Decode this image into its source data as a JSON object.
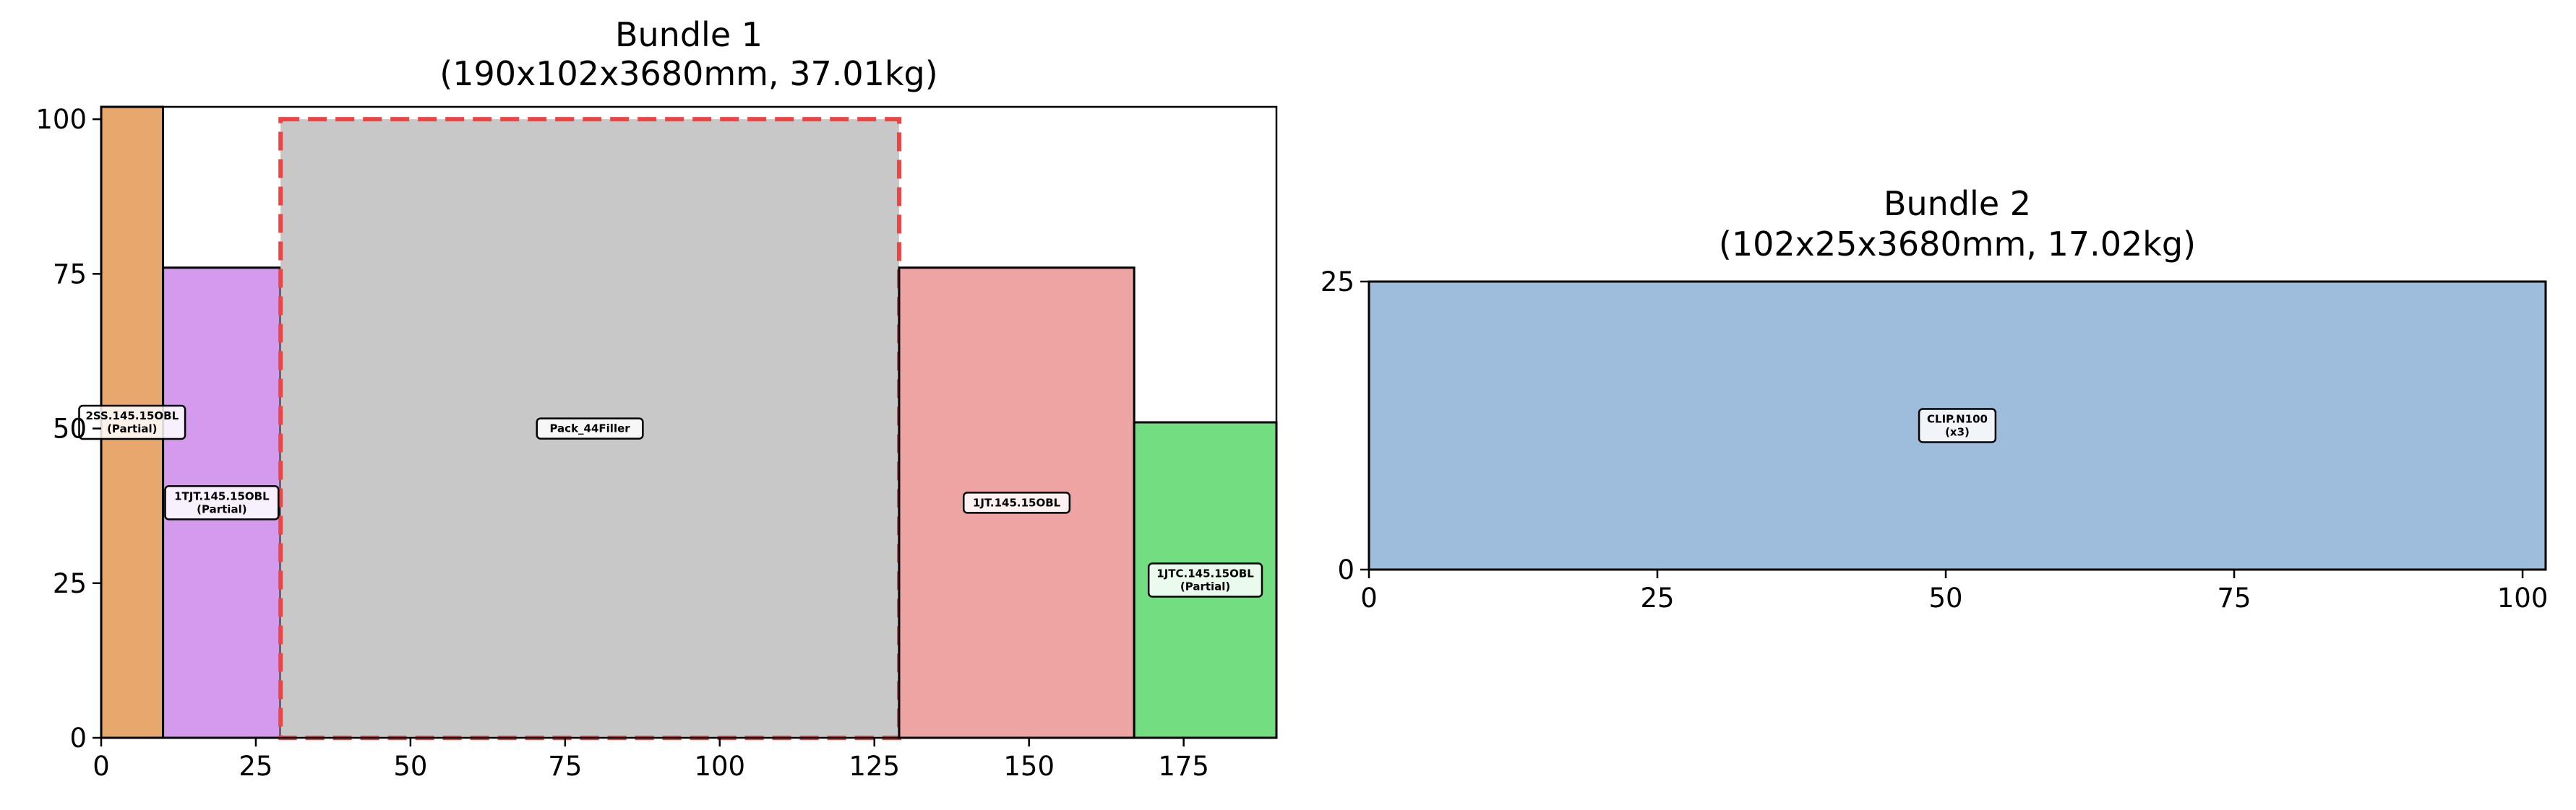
{
  "chart_data": [
    {
      "type": "bar",
      "title": "Bundle 1",
      "subtitle": "(190x102x3680mm, 37.01kg)",
      "xlim": [
        0,
        190
      ],
      "ylim": [
        0,
        102
      ],
      "xticks": [
        0,
        25,
        50,
        75,
        100,
        125,
        150,
        175
      ],
      "yticks": [
        0,
        25,
        50,
        75,
        100
      ],
      "grid": false,
      "items": [
        {
          "label": "2SS.145.15OBL",
          "sublabel": "(Partial)",
          "x": 0,
          "y": 0,
          "w": 10,
          "h": 102,
          "color": "#e8a76c",
          "border": "solid"
        },
        {
          "label": "1TJT.145.15OBL",
          "sublabel": "(Partial)",
          "x": 10,
          "y": 0,
          "w": 19,
          "h": 76,
          "color": "#d39aee",
          "border": "solid"
        },
        {
          "label": "Pack_44Filler",
          "sublabel": "",
          "x": 29,
          "y": 0,
          "w": 100,
          "h": 100,
          "color": "#c8c8c8",
          "border": "dashed-red"
        },
        {
          "label": "1JT.145.15OBL",
          "sublabel": "",
          "x": 129,
          "y": 0,
          "w": 38,
          "h": 76,
          "color": "#efa4a4",
          "border": "solid"
        },
        {
          "label": "1JTC.145.15OBL",
          "sublabel": "(Partial)",
          "x": 167,
          "y": 0,
          "w": 23,
          "h": 51,
          "color": "#72de81",
          "border": "solid"
        }
      ]
    },
    {
      "type": "bar",
      "title": "Bundle 2",
      "subtitle": "(102x25x3680mm, 17.02kg)",
      "xlim": [
        0,
        102
      ],
      "ylim": [
        0,
        25
      ],
      "xticks": [
        0,
        25,
        50,
        75,
        100
      ],
      "yticks": [
        0,
        25
      ],
      "grid": false,
      "items": [
        {
          "label": "CLIP.N100",
          "sublabel": "(x3)",
          "x": 0,
          "y": 0,
          "w": 102,
          "h": 25,
          "color": "#9ebddc",
          "border": "solid"
        }
      ]
    }
  ]
}
